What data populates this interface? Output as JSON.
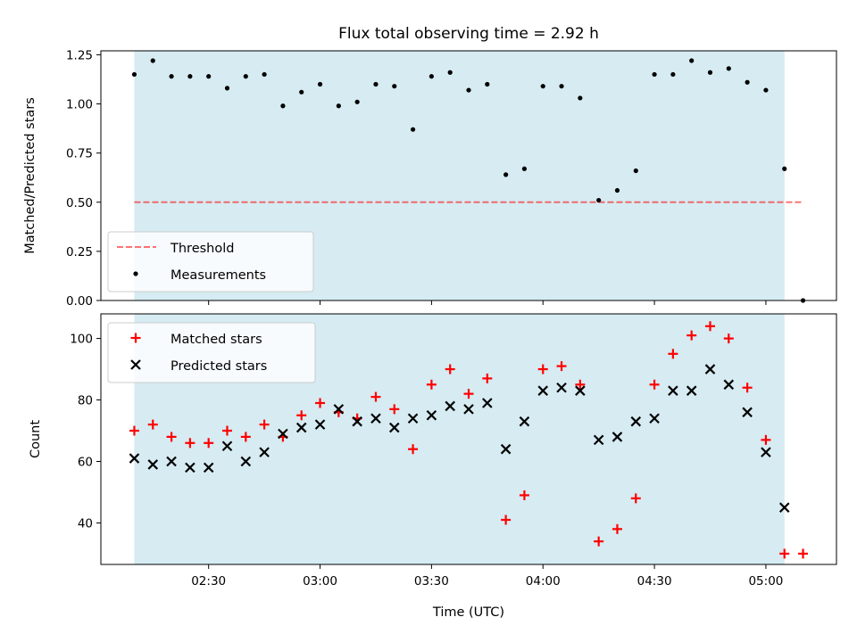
{
  "title": "Flux total observing time = 2.92 h",
  "colors": {
    "shade": "#add8e6",
    "threshold": "#ff0000",
    "measurement": "#000000",
    "matched": "#ff0000",
    "predicted": "#000000"
  },
  "chart_data": [
    {
      "type": "scatter",
      "ylabel": "Matched/Predicted stars",
      "xlabel": "",
      "ylim": [
        0.0,
        1.27
      ],
      "yticks": [
        0.0,
        0.25,
        0.5,
        0.75,
        1.0,
        1.25
      ],
      "ytick_labels": [
        "0.00",
        "0.25",
        "0.50",
        "0.75",
        "1.00",
        "1.25"
      ],
      "shaded_span_minutes": [
        0,
        175
      ],
      "threshold": {
        "label": "Threshold",
        "value": 0.5,
        "x_range_minutes": [
          0,
          180
        ]
      },
      "legend": [
        "Threshold",
        "Measurements"
      ],
      "legend_location": "lower-left",
      "series": [
        {
          "name": "Measurements",
          "x_minutes": [
            0,
            5,
            10,
            15,
            20,
            25,
            30,
            35,
            40,
            45,
            50,
            55,
            60,
            65,
            70,
            75,
            80,
            85,
            90,
            95,
            100,
            105,
            110,
            115,
            120,
            125,
            130,
            135,
            140,
            145,
            150,
            155,
            160,
            165,
            170,
            175,
            180
          ],
          "values": [
            1.15,
            1.22,
            1.14,
            1.14,
            1.14,
            1.08,
            1.14,
            1.15,
            0.99,
            1.06,
            1.1,
            0.99,
            1.01,
            1.1,
            1.09,
            0.87,
            1.14,
            1.16,
            1.07,
            1.1,
            0.64,
            0.67,
            1.09,
            1.09,
            1.03,
            0.51,
            0.56,
            0.66,
            1.15,
            1.15,
            1.22,
            1.16,
            1.18,
            1.11,
            1.07,
            0.67,
            0.0
          ]
        }
      ]
    },
    {
      "type": "scatter",
      "ylabel": "Count",
      "xlabel": "Time (UTC)",
      "ylim": [
        26.5,
        108
      ],
      "yticks": [
        40,
        60,
        80,
        100
      ],
      "ytick_labels": [
        "40",
        "60",
        "80",
        "100"
      ],
      "x_range_minutes": [
        -9,
        189
      ],
      "x_start_time": "02:10",
      "xticks_minutes": [
        20,
        50,
        80,
        110,
        140,
        170
      ],
      "xtick_labels": [
        "02:30",
        "03:00",
        "03:30",
        "04:00",
        "04:30",
        "05:00"
      ],
      "shaded_span_minutes": [
        0,
        175
      ],
      "legend": [
        "Matched stars",
        "Predicted stars"
      ],
      "legend_location": "upper-left",
      "series": [
        {
          "name": "Matched stars",
          "x_minutes": [
            0,
            5,
            10,
            15,
            20,
            25,
            30,
            35,
            40,
            45,
            50,
            55,
            60,
            65,
            70,
            75,
            80,
            85,
            90,
            95,
            100,
            105,
            110,
            115,
            120,
            125,
            130,
            135,
            140,
            145,
            150,
            155,
            160,
            165,
            170,
            175,
            180
          ],
          "values": [
            70,
            72,
            68,
            66,
            66,
            70,
            68,
            72,
            68,
            75,
            79,
            76,
            74,
            81,
            77,
            64,
            85,
            90,
            82,
            87,
            41,
            49,
            90,
            91,
            85,
            34,
            38,
            48,
            85,
            95,
            101,
            104,
            100,
            84,
            67,
            30,
            30
          ]
        },
        {
          "name": "Predicted stars",
          "x_minutes": [
            0,
            5,
            10,
            15,
            20,
            25,
            30,
            35,
            40,
            45,
            50,
            55,
            60,
            65,
            70,
            75,
            80,
            85,
            90,
            95,
            100,
            105,
            110,
            115,
            120,
            125,
            130,
            135,
            140,
            145,
            150,
            155,
            160,
            165,
            170,
            175
          ],
          "values": [
            61,
            59,
            60,
            58,
            58,
            65,
            60,
            63,
            69,
            71,
            72,
            77,
            73,
            74,
            71,
            74,
            75,
            78,
            77,
            79,
            64,
            73,
            83,
            84,
            83,
            67,
            68,
            73,
            74,
            83,
            83,
            90,
            85,
            76,
            63,
            45
          ]
        }
      ]
    }
  ]
}
